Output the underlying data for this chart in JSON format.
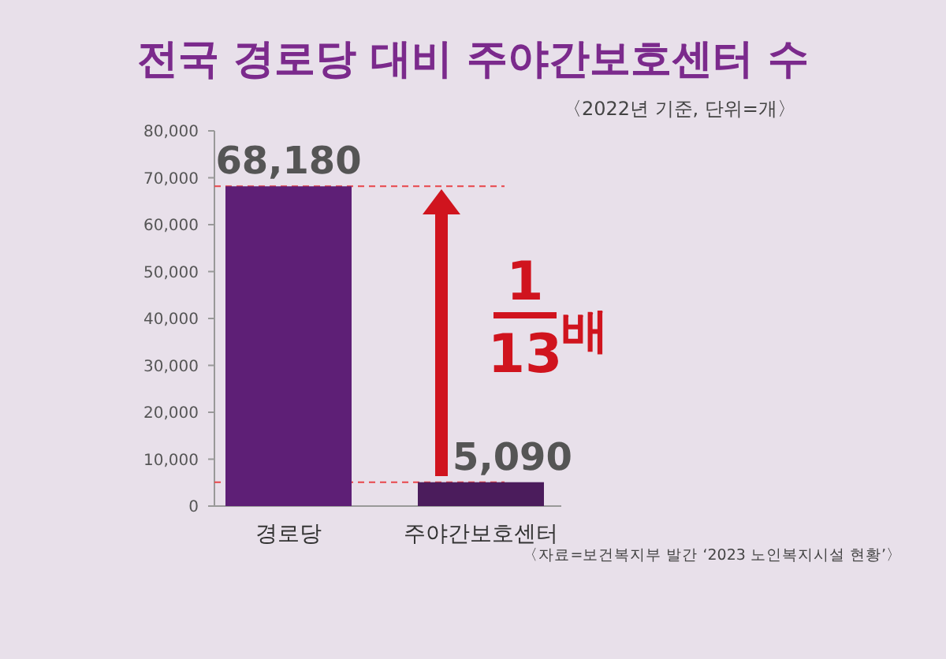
{
  "chart_data": {
    "type": "bar",
    "title": "전국 경로당 대비 주야간보호센터 수",
    "subtitle": "〈2022년 기준, 단위=개〉",
    "categories": [
      "경로당",
      "주야간보호센터"
    ],
    "values": [
      68180,
      5090
    ],
    "colors": [
      "#5e1f76",
      "#4b1c5c"
    ],
    "value_labels": [
      "68,180",
      "5,090"
    ],
    "ylim": [
      0,
      80000
    ],
    "yticks": [
      {
        "value": 0,
        "label": "0"
      },
      {
        "value": 10000,
        "label": "10,000"
      },
      {
        "value": 20000,
        "label": "20,000"
      },
      {
        "value": 30000,
        "label": "30,000"
      },
      {
        "value": 40000,
        "label": "40,000"
      },
      {
        "value": 50000,
        "label": "50,000"
      },
      {
        "value": 60000,
        "label": "60,000"
      },
      {
        "value": 70000,
        "label": "70,000"
      },
      {
        "value": 80000,
        "label": "80,000"
      }
    ],
    "ref_lines": [
      {
        "axis": "y",
        "value": 68180,
        "color": "#e8454a",
        "line_style": "dashed"
      },
      {
        "axis": "y",
        "value": 5090,
        "color": "#e8454a",
        "line_style": "dashed"
      }
    ],
    "annotations": [
      "1",
      "13",
      "배",
      "〈자료=보건복지부 발간 ‘2023 노인복지시설 현황’〉"
    ]
  }
}
